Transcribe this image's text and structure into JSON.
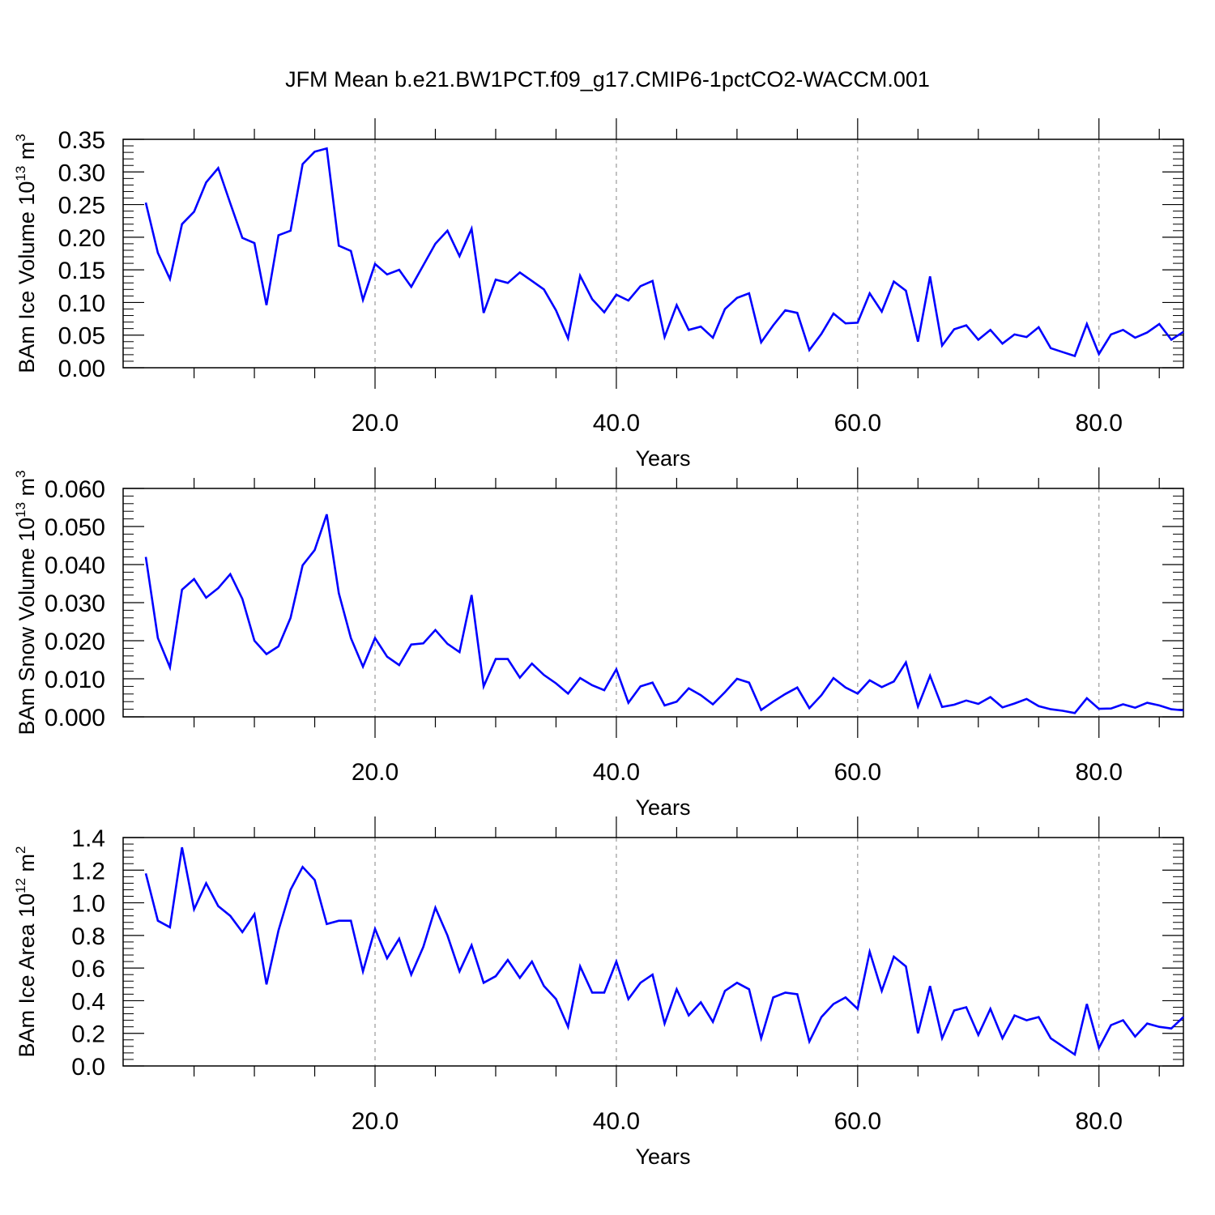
{
  "title": "JFM Mean b.e21.BW1PCT.f09_g17.CMIP6-1pctCO2-WACCM.001",
  "chart_data": [
    {
      "type": "line",
      "ylabel_main": "BAm Ice Volume 10",
      "ylabel_exp": "13",
      "ylabel_unit": " m",
      "ylabel_unit_exp": "3",
      "xlabel": "Years",
      "xlim": [
        1,
        87
      ],
      "ylim": [
        0,
        0.35
      ],
      "yticks": [
        "0.00",
        "0.05",
        "0.10",
        "0.15",
        "0.20",
        "0.25",
        "0.30",
        "0.35"
      ],
      "xticks": [
        "20.0",
        "40.0",
        "60.0",
        "80.0"
      ],
      "line_color": "#0000ff",
      "grid": "vertical dashed at major x ticks",
      "x": [
        1,
        2,
        3,
        4,
        5,
        6,
        7,
        8,
        9,
        10,
        11,
        12,
        13,
        14,
        15,
        16,
        17,
        18,
        19,
        20,
        21,
        22,
        23,
        24,
        25,
        26,
        27,
        28,
        29,
        30,
        31,
        32,
        33,
        34,
        35,
        36,
        37,
        38,
        39,
        40,
        41,
        42,
        43,
        44,
        45,
        46,
        47,
        48,
        49,
        50,
        51,
        52,
        53,
        54,
        55,
        56,
        57,
        58,
        59,
        60,
        61,
        62,
        63,
        64,
        65,
        66,
        67,
        68,
        69,
        70,
        71,
        72,
        73,
        74,
        75,
        76,
        77,
        78,
        79,
        80,
        81,
        82,
        83,
        84,
        85,
        86,
        87
      ],
      "values": [
        0.253,
        0.176,
        0.136,
        0.22,
        0.239,
        0.284,
        0.306,
        0.252,
        0.199,
        0.191,
        0.096,
        0.203,
        0.21,
        0.312,
        0.331,
        0.336,
        0.187,
        0.179,
        0.104,
        0.159,
        0.143,
        0.15,
        0.124,
        0.157,
        0.19,
        0.21,
        0.171,
        0.213,
        0.084,
        0.135,
        0.13,
        0.146,
        0.133,
        0.12,
        0.088,
        0.045,
        0.141,
        0.105,
        0.085,
        0.112,
        0.103,
        0.125,
        0.133,
        0.047,
        0.096,
        0.058,
        0.063,
        0.046,
        0.09,
        0.107,
        0.114,
        0.039,
        0.065,
        0.088,
        0.084,
        0.027,
        0.052,
        0.083,
        0.068,
        0.069,
        0.114,
        0.086,
        0.132,
        0.118,
        0.04,
        0.14,
        0.034,
        0.059,
        0.065,
        0.043,
        0.058,
        0.037,
        0.051,
        0.047,
        0.062,
        0.03,
        0.024,
        0.018,
        0.067,
        0.021,
        0.051,
        0.058,
        0.046,
        0.054,
        0.067,
        0.043,
        0.055
      ]
    },
    {
      "type": "line",
      "ylabel_main": "BAm Snow Volume 10",
      "ylabel_exp": "13",
      "ylabel_unit": " m",
      "ylabel_unit_exp": "3",
      "xlabel": "Years",
      "xlim": [
        1,
        87
      ],
      "ylim": [
        0,
        0.06
      ],
      "yticks": [
        "0.000",
        "0.010",
        "0.020",
        "0.030",
        "0.040",
        "0.050",
        "0.060"
      ],
      "xticks": [
        "20.0",
        "40.0",
        "60.0",
        "80.0"
      ],
      "line_color": "#0000ff",
      "grid": "vertical dashed at major x ticks",
      "x": [
        1,
        2,
        3,
        4,
        5,
        6,
        7,
        8,
        9,
        10,
        11,
        12,
        13,
        14,
        15,
        16,
        17,
        18,
        19,
        20,
        21,
        22,
        23,
        24,
        25,
        26,
        27,
        28,
        29,
        30,
        31,
        32,
        33,
        34,
        35,
        36,
        37,
        38,
        39,
        40,
        41,
        42,
        43,
        44,
        45,
        46,
        47,
        48,
        49,
        50,
        51,
        52,
        53,
        54,
        55,
        56,
        57,
        58,
        59,
        60,
        61,
        62,
        63,
        64,
        65,
        66,
        67,
        68,
        69,
        70,
        71,
        72,
        73,
        74,
        75,
        76,
        77,
        78,
        79,
        80,
        81,
        82,
        83,
        84,
        85,
        86,
        87
      ],
      "values": [
        0.042,
        0.0207,
        0.013,
        0.0334,
        0.0362,
        0.0313,
        0.0338,
        0.0375,
        0.031,
        0.02,
        0.0165,
        0.0185,
        0.026,
        0.0398,
        0.0438,
        0.0532,
        0.0325,
        0.0207,
        0.0132,
        0.0207,
        0.0158,
        0.0136,
        0.019,
        0.0193,
        0.0228,
        0.0192,
        0.017,
        0.032,
        0.008,
        0.0152,
        0.0152,
        0.0103,
        0.014,
        0.011,
        0.0088,
        0.0061,
        0.0102,
        0.0083,
        0.007,
        0.0125,
        0.0037,
        0.008,
        0.009,
        0.003,
        0.004,
        0.0075,
        0.0057,
        0.0033,
        0.0065,
        0.01,
        0.009,
        0.0018,
        0.004,
        0.006,
        0.0077,
        0.0023,
        0.0057,
        0.0102,
        0.0077,
        0.0061,
        0.0096,
        0.0078,
        0.0093,
        0.0143,
        0.0027,
        0.0108,
        0.0026,
        0.0032,
        0.0043,
        0.0034,
        0.0052,
        0.0025,
        0.0035,
        0.0047,
        0.0028,
        0.002,
        0.0016,
        0.001,
        0.0049,
        0.0021,
        0.0022,
        0.0033,
        0.0024,
        0.0037,
        0.003,
        0.002,
        0.0017
      ]
    },
    {
      "type": "line",
      "ylabel_main": "BAm Ice Area 10",
      "ylabel_exp": "12",
      "ylabel_unit": " m",
      "ylabel_unit_exp": "2",
      "xlabel": "Years",
      "xlim": [
        1,
        87
      ],
      "ylim": [
        0,
        1.4
      ],
      "yticks": [
        "0.0",
        "0.2",
        "0.4",
        "0.6",
        "0.8",
        "1.0",
        "1.2",
        "1.4"
      ],
      "xticks": [
        "20.0",
        "40.0",
        "60.0",
        "80.0"
      ],
      "line_color": "#0000ff",
      "grid": "vertical dashed at major x ticks",
      "x": [
        1,
        2,
        3,
        4,
        5,
        6,
        7,
        8,
        9,
        10,
        11,
        12,
        13,
        14,
        15,
        16,
        17,
        18,
        19,
        20,
        21,
        22,
        23,
        24,
        25,
        26,
        27,
        28,
        29,
        30,
        31,
        32,
        33,
        34,
        35,
        36,
        37,
        38,
        39,
        40,
        41,
        42,
        43,
        44,
        45,
        46,
        47,
        48,
        49,
        50,
        51,
        52,
        53,
        54,
        55,
        56,
        57,
        58,
        59,
        60,
        61,
        62,
        63,
        64,
        65,
        66,
        67,
        68,
        69,
        70,
        71,
        72,
        73,
        74,
        75,
        76,
        77,
        78,
        79,
        80,
        81,
        82,
        83,
        84,
        85,
        86,
        87
      ],
      "values": [
        1.18,
        0.89,
        0.85,
        1.34,
        0.96,
        1.12,
        0.98,
        0.92,
        0.82,
        0.93,
        0.5,
        0.83,
        1.08,
        1.22,
        1.14,
        0.87,
        0.89,
        0.89,
        0.58,
        0.84,
        0.66,
        0.78,
        0.56,
        0.73,
        0.97,
        0.8,
        0.58,
        0.74,
        0.51,
        0.55,
        0.65,
        0.54,
        0.64,
        0.49,
        0.41,
        0.24,
        0.61,
        0.45,
        0.45,
        0.64,
        0.41,
        0.51,
        0.56,
        0.26,
        0.47,
        0.31,
        0.39,
        0.27,
        0.46,
        0.51,
        0.47,
        0.17,
        0.42,
        0.45,
        0.44,
        0.15,
        0.3,
        0.38,
        0.42,
        0.35,
        0.7,
        0.46,
        0.67,
        0.61,
        0.2,
        0.49,
        0.17,
        0.34,
        0.36,
        0.19,
        0.35,
        0.17,
        0.31,
        0.28,
        0.3,
        0.17,
        0.12,
        0.07,
        0.38,
        0.11,
        0.25,
        0.28,
        0.18,
        0.26,
        0.24,
        0.23,
        0.3
      ]
    }
  ]
}
